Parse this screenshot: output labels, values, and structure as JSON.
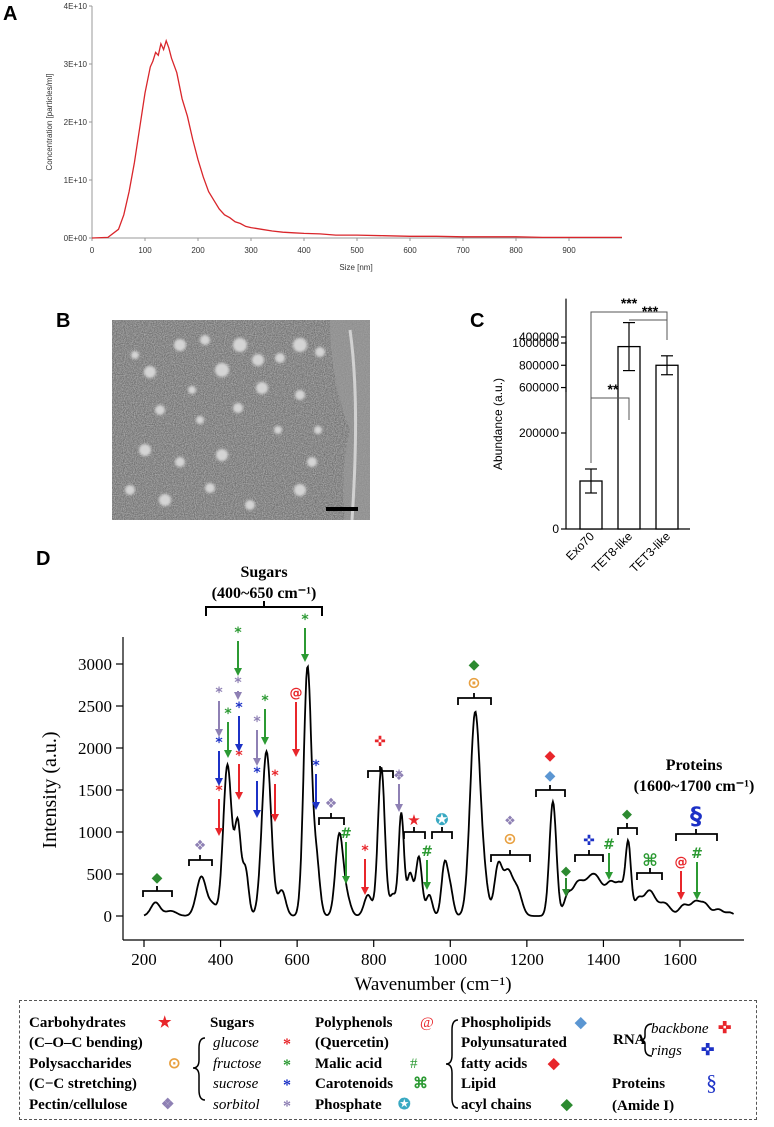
{
  "panels": {
    "A": "A",
    "B": "B",
    "C": "C",
    "D": "D"
  },
  "chart_data": [
    {
      "id": "A",
      "type": "line",
      "xlabel": "Size [nm]",
      "ylabel": "Concentration [particles/ml]",
      "xlim": [
        0,
        1000
      ],
      "ylim": [
        0,
        40000000000
      ],
      "xticks": [
        "0",
        "100",
        "200",
        "300",
        "400",
        "500",
        "600",
        "700",
        "800",
        "900"
      ],
      "xtick_values": [
        0,
        100,
        200,
        300,
        400,
        500,
        600,
        700,
        800,
        900
      ],
      "yticks": [
        "0E+00",
        "1E+10",
        "2E+10",
        "3E+10",
        "4E+10"
      ],
      "ytick_values": [
        0,
        10000000000,
        20000000000,
        30000000000,
        40000000000
      ],
      "line_color": "#d9262b",
      "series": [
        {
          "x": [
            0,
            30,
            50,
            60,
            70,
            80,
            90,
            100,
            110,
            115,
            120,
            125,
            130,
            135,
            140,
            145,
            150,
            160,
            170,
            180,
            190,
            200,
            210,
            220,
            230,
            240,
            250,
            260,
            270,
            280,
            290,
            300,
            320,
            340,
            360,
            380,
            400,
            430,
            460,
            500,
            550,
            600,
            650,
            700,
            750,
            800,
            850,
            900,
            950,
            1000
          ],
          "y": [
            0,
            100000000,
            1500000000,
            4000000000,
            8000000000,
            13000000000,
            19000000000,
            25000000000,
            29500000000,
            30500000000,
            32000000000,
            31500000000,
            33500000000,
            32500000000,
            34000000000,
            32800000000,
            31000000000,
            28500000000,
            24000000000,
            21000000000,
            17000000000,
            13500000000,
            10500000000,
            8000000000,
            6500000000,
            5000000000,
            4000000000,
            3500000000,
            2800000000,
            2500000000,
            2000000000,
            1800000000,
            1500000000,
            1200000000,
            1000000000,
            900000000,
            800000000,
            700000000,
            500000000,
            500000000,
            400000000,
            300000000,
            300000000,
            200000000,
            200000000,
            200000000,
            100000000,
            100000000,
            100000000,
            100000000
          ]
        }
      ]
    },
    {
      "id": "C",
      "type": "bar",
      "ylabel": "Abundance (a.u.)",
      "categories": [
        "Exo70",
        "TET8-like",
        "TET3-like"
      ],
      "values": [
        100000,
        380000,
        800000
      ],
      "errors": [
        25000,
        50000,
        85000
      ],
      "lower_yticks": [
        "0",
        "200000",
        "400000"
      ],
      "lower_ytick_values": [
        0,
        200000,
        400000
      ],
      "upper_yticks": [
        "600000",
        "800000",
        "1000000"
      ],
      "upper_ytick_values": [
        600000,
        800000,
        1000000
      ],
      "axis_break": [
        480000,
        560000
      ],
      "significance": [
        {
          "from": 0,
          "to": 1,
          "label": "**"
        },
        {
          "from": 0,
          "to": 2,
          "label": "***"
        },
        {
          "from": 1,
          "to": 2,
          "label": "***"
        }
      ]
    },
    {
      "id": "D",
      "type": "line",
      "xlabel": "Wavenumber (cm⁻¹)",
      "ylabel": "Intensity (a.u.)",
      "xlim": [
        180,
        1760
      ],
      "ylim": [
        0,
        3100
      ],
      "xticks": [
        "200",
        "400",
        "600",
        "800",
        "1000",
        "1200",
        "1400",
        "1600"
      ],
      "xtick_values": [
        200,
        400,
        600,
        800,
        1000,
        1200,
        1400,
        1600
      ],
      "yticks": [
        "0",
        "500",
        "1000",
        "1500",
        "2000",
        "2500",
        "3000"
      ],
      "ytick_values": [
        0,
        500,
        1000,
        1500,
        2000,
        2500,
        3000
      ],
      "peaks": [
        [
          230,
          160,
          12
        ],
        [
          270,
          60,
          15
        ],
        [
          350,
          470,
          13
        ],
        [
          380,
          120,
          10
        ],
        [
          418,
          1800,
          11
        ],
        [
          445,
          1050,
          8
        ],
        [
          465,
          550,
          8
        ],
        [
          520,
          1960,
          12
        ],
        [
          560,
          300,
          10
        ],
        [
          627,
          2950,
          10
        ],
        [
          650,
          650,
          9
        ],
        [
          710,
          960,
          10
        ],
        [
          730,
          200,
          10
        ],
        [
          785,
          250,
          10
        ],
        [
          820,
          1770,
          9
        ],
        [
          850,
          250,
          8
        ],
        [
          872,
          1220,
          7
        ],
        [
          895,
          500,
          8
        ],
        [
          918,
          700,
          8
        ],
        [
          945,
          250,
          8
        ],
        [
          985,
          600,
          8
        ],
        [
          1000,
          300,
          8
        ],
        [
          1065,
          2420,
          13
        ],
        [
          1090,
          300,
          10
        ],
        [
          1125,
          580,
          10
        ],
        [
          1150,
          500,
          12
        ],
        [
          1175,
          300,
          12
        ],
        [
          1268,
          1360,
          9
        ],
        [
          1305,
          180,
          9
        ],
        [
          1330,
          300,
          15
        ],
        [
          1375,
          500,
          25
        ],
        [
          1420,
          280,
          12
        ],
        [
          1445,
          350,
          12
        ],
        [
          1465,
          800,
          7
        ],
        [
          1490,
          180,
          10
        ],
        [
          1520,
          300,
          15
        ],
        [
          1560,
          150,
          15
        ],
        [
          1610,
          130,
          12
        ],
        [
          1640,
          160,
          12
        ],
        [
          1665,
          140,
          12
        ],
        [
          1700,
          80,
          12
        ],
        [
          1730,
          40,
          10
        ]
      ],
      "annotations": {
        "sugars_label": "Sugars",
        "sugars_range": "(400~650 cm⁻¹)",
        "proteins_label": "Proteins",
        "proteins_range": "(1600~1700 cm⁻¹)"
      },
      "mark_colors": {
        "glucose": "#e8262b",
        "fructose": "#2c9a33",
        "sucrose": "#1c31c6",
        "sorbitol": "#8e80b4",
        "carbohydrates": "#e8262b",
        "polysaccharides": "#e8a040",
        "pectin": "#8e80b4",
        "polyphenols": "#e8262b",
        "malic": "#2c9a33",
        "carotenoids": "#2c9a33",
        "phosphate": "#39a9c2",
        "phospholipids": "#5b96d2",
        "pufa": "#e8262b",
        "lipid": "#2c8a30",
        "rna_backbone": "#e8262b",
        "rna_rings": "#1c31c6",
        "proteins": "#1c31c6"
      }
    }
  ],
  "legend": {
    "carbohydrates": "Carbohydrates",
    "cob": "(C–O–C bending)",
    "polysaccharides": "Polysaccharides",
    "ccs": "(C−C stretching)",
    "pectin": "Pectin/cellulose",
    "sugars": "Sugars",
    "glucose": "glucose",
    "fructose": "fructose",
    "sucrose": "sucrose",
    "sorbitol": "sorbitol",
    "polyphenols": "Polyphenols",
    "quercetin": "(Quercetin)",
    "malic": "Malic acid",
    "carotenoids": "Carotenoids",
    "phosphate": "Phosphate",
    "phospholipids": "Phospholipids",
    "pufa1": "Polyunsaturated",
    "pufa2": "fatty acids",
    "lipid1": "Lipid",
    "lipid2": "acyl chains",
    "rna": "RNA",
    "backbone": "backbone",
    "rings": "rings",
    "proteins": "Proteins",
    "amide": "(Amide I)"
  },
  "icons": {
    "star": "★",
    "asterisk": "*",
    "circle_dot": "⊙",
    "diamond4": "❖",
    "at": "@",
    "hash": "#",
    "command": "⌘",
    "star_circle": "✪",
    "diamond": "◆",
    "cross4": "✜",
    "section": "§"
  }
}
